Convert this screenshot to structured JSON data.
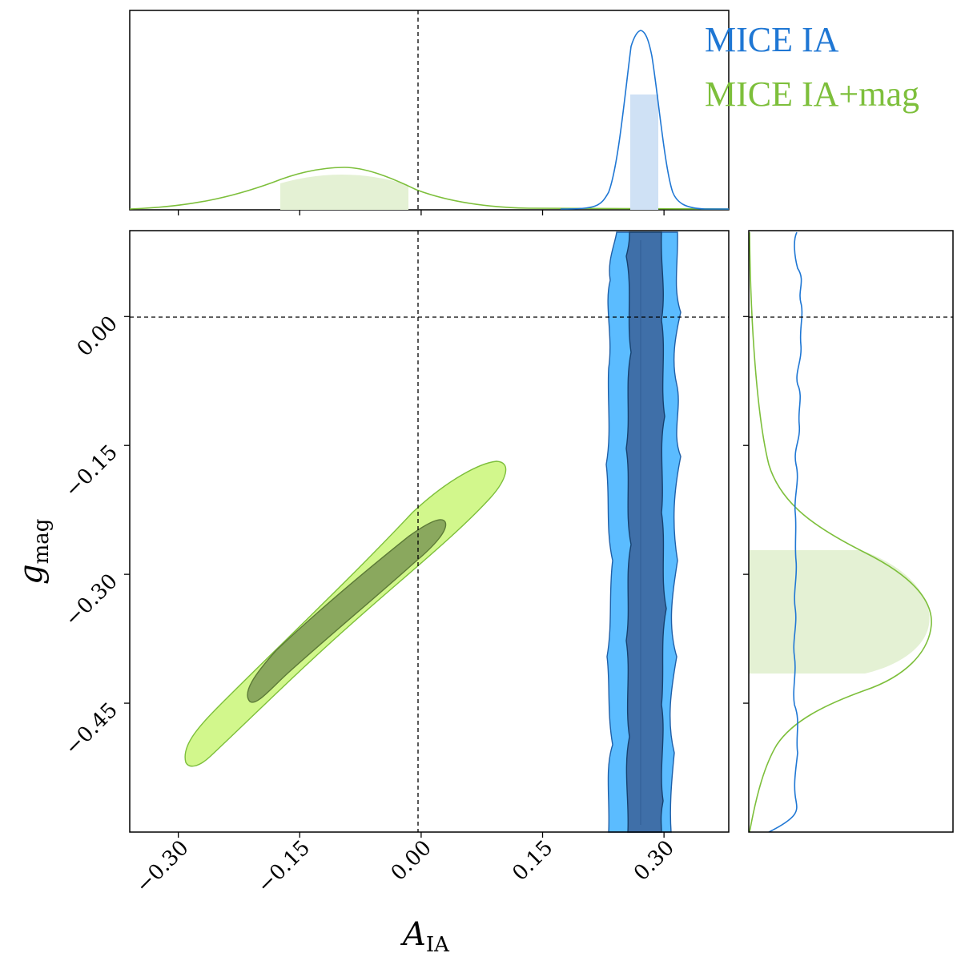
{
  "chart_data": {
    "type": "corner-plot",
    "xlabel": {
      "main": "A",
      "sub": "IA"
    },
    "ylabel": {
      "main": "g",
      "sub": "mag"
    },
    "xlim": [
      -0.36,
      0.38
    ],
    "ylim": [
      -0.6,
      0.1
    ],
    "xticks": [
      "−0.30",
      "−0.15",
      "0.00",
      "0.15",
      "0.30"
    ],
    "yticks": [
      "0.00",
      "−0.15",
      "−0.30",
      "−0.45"
    ],
    "reference_lines": {
      "x": 0.0,
      "y": 0.0
    },
    "series": [
      {
        "name": "MICE IA",
        "color": "#1f77d4",
        "fill_outer": "#5bbcff",
        "fill_inner": "#3f6fa8",
        "A_IA_mean": 0.278,
        "A_IA_68": [
          0.262,
          0.297
        ],
        "A_IA_95": [
          0.242,
          0.312
        ],
        "g_mag": "unconstrained (flat over plotted range)"
      },
      {
        "name": "MICE IA+mag",
        "color": "#7dbf3b",
        "fill_outer": "#d2f78c",
        "fill_inner": "#8aa85e",
        "A_IA_mean": -0.09,
        "A_IA_68": [
          -0.17,
          -0.01
        ],
        "g_mag_mean": -0.355,
        "g_mag_68": [
          -0.27,
          -0.415
        ],
        "contour_68": {
          "corners": [
            [
              -0.195,
              -0.445
            ],
            [
              0.035,
              -0.235
            ]
          ]
        },
        "contour_95": {
          "corners": [
            [
              -0.27,
              -0.515
            ],
            [
              0.1,
              -0.18
            ]
          ]
        }
      }
    ],
    "legend": {
      "placement": "top-right",
      "entries": [
        "MICE IA",
        "MICE IA+mag"
      ]
    }
  }
}
